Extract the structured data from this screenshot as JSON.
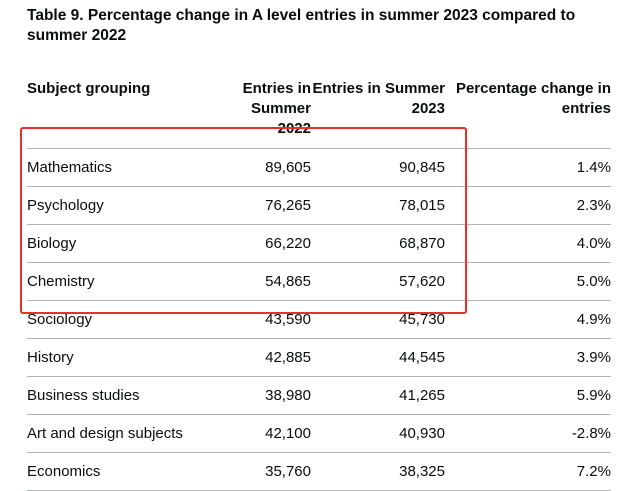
{
  "caption": "Table 9. Percentage change in A level entries in summer 2023 compared to summer 2022",
  "headers": {
    "subject": "Subject grouping",
    "entries2022": "Entries in Summer 2022",
    "entries2023": "Entries in Summer 2023",
    "change": "Percentage change in entries"
  },
  "rows": [
    {
      "subject": "Mathematics",
      "e2022": "89,605",
      "e2023": "90,845",
      "change": "1.4%"
    },
    {
      "subject": "Psychology",
      "e2022": "76,265",
      "e2023": "78,015",
      "change": "2.3%"
    },
    {
      "subject": "Biology",
      "e2022": "66,220",
      "e2023": "68,870",
      "change": "4.0%"
    },
    {
      "subject": "Chemistry",
      "e2022": "54,865",
      "e2023": "57,620",
      "change": "5.0%"
    },
    {
      "subject": "Sociology",
      "e2022": "43,590",
      "e2023": "45,730",
      "change": "4.9%"
    },
    {
      "subject": "History",
      "e2022": "42,885",
      "e2023": "44,545",
      "change": "3.9%"
    },
    {
      "subject": "Business studies",
      "e2022": "38,980",
      "e2023": "41,265",
      "change": "5.9%"
    },
    {
      "subject": "Art and design subjects",
      "e2022": "42,100",
      "e2023": "40,930",
      "change": "-2.8%"
    },
    {
      "subject": "Economics",
      "e2022": "35,760",
      "e2023": "38,325",
      "change": "7.2%"
    }
  ],
  "highlight_color": "#e8312b"
}
